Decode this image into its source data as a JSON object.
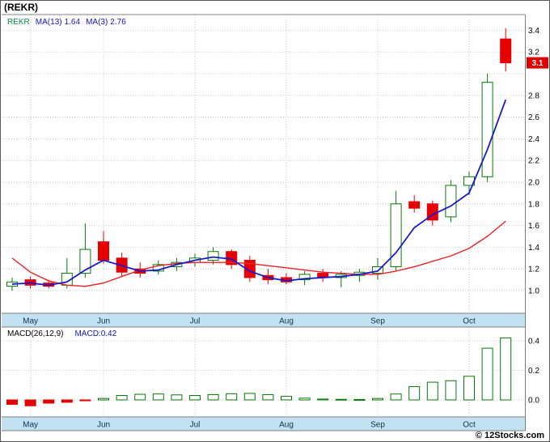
{
  "header": {
    "title": "(REKR)"
  },
  "legend": {
    "symbol": "REKR",
    "ma13_label": "MA(13)",
    "ma13_value": "1.64",
    "ma3_label": "MA(3)",
    "ma3_value": "2.76"
  },
  "macd_panel": {
    "label": "MACD(26,12,9)",
    "value_label": "MACD:0.42"
  },
  "footer": {
    "credit": "© 12Stocks.com"
  },
  "colors": {
    "up": "#067a06",
    "down": "#e60000",
    "ma_fast_line": "#1a1acd",
    "ma_slow_line": "#ee2222",
    "band": "#c3e2f1",
    "band_text": "#0d3050",
    "grid": "#c9c9c9",
    "border": "#808080",
    "axis_text": "#000000",
    "price_tag_bg": "#dd0000",
    "price_tag_text": "#ffffff",
    "legend_symbol": "#0a8a4a",
    "legend_ma": "#1414cc",
    "macd_label": "#000000",
    "macd_value": "#1414cc"
  },
  "chart_data": {
    "type": "candlestick",
    "title": "(REKR)",
    "symbol": "REKR",
    "legend_position": "top-left",
    "grid": true,
    "timeframe_months": [
      "May",
      "Jun",
      "Jul",
      "Aug",
      "Sep",
      "Oct"
    ],
    "month_tick_indices": [
      1,
      5,
      10,
      15,
      20,
      25
    ],
    "price_axis_ticks": [
      1.0,
      1.2,
      1.4,
      1.6,
      1.8,
      2.0,
      2.2,
      2.4,
      2.6,
      2.8,
      3.2,
      3.4
    ],
    "price_ylim": [
      0.8,
      3.5
    ],
    "last_price": 3.1,
    "candle_format": [
      "open",
      "high",
      "low",
      "close"
    ],
    "candles": [
      [
        1.04,
        1.12,
        1.0,
        1.08
      ],
      [
        1.1,
        1.13,
        1.02,
        1.05
      ],
      [
        1.07,
        1.1,
        1.02,
        1.04
      ],
      [
        1.05,
        1.3,
        1.02,
        1.16
      ],
      [
        1.16,
        1.62,
        1.12,
        1.38
      ],
      [
        1.45,
        1.55,
        1.25,
        1.28
      ],
      [
        1.3,
        1.35,
        1.13,
        1.17
      ],
      [
        1.2,
        1.26,
        1.12,
        1.16
      ],
      [
        1.18,
        1.28,
        1.15,
        1.24
      ],
      [
        1.22,
        1.3,
        1.18,
        1.26
      ],
      [
        1.26,
        1.34,
        1.22,
        1.3
      ],
      [
        1.28,
        1.4,
        1.24,
        1.36
      ],
      [
        1.36,
        1.38,
        1.2,
        1.24
      ],
      [
        1.28,
        1.32,
        1.08,
        1.12
      ],
      [
        1.14,
        1.2,
        1.06,
        1.1
      ],
      [
        1.12,
        1.16,
        1.06,
        1.08
      ],
      [
        1.1,
        1.18,
        1.05,
        1.15
      ],
      [
        1.16,
        1.2,
        1.08,
        1.12
      ],
      [
        1.12,
        1.18,
        1.03,
        1.15
      ],
      [
        1.14,
        1.2,
        1.08,
        1.17
      ],
      [
        1.16,
        1.3,
        1.1,
        1.22
      ],
      [
        1.22,
        1.92,
        1.18,
        1.8
      ],
      [
        1.82,
        1.88,
        1.72,
        1.76
      ],
      [
        1.8,
        1.83,
        1.6,
        1.65
      ],
      [
        1.68,
        2.02,
        1.63,
        1.97
      ],
      [
        1.97,
        2.1,
        1.88,
        2.05
      ],
      [
        2.05,
        3.0,
        2.0,
        2.92
      ],
      [
        3.32,
        3.42,
        3.02,
        3.1
      ]
    ],
    "series": [
      {
        "name": "MA(3)",
        "last_value": 2.76,
        "values": [
          1.06,
          1.07,
          1.05,
          1.08,
          1.19,
          1.28,
          1.23,
          1.18,
          1.19,
          1.24,
          1.28,
          1.31,
          1.29,
          1.18,
          1.12,
          1.09,
          1.11,
          1.12,
          1.13,
          1.15,
          1.18,
          1.35,
          1.58,
          1.7,
          1.78,
          1.9,
          2.3,
          2.76
        ]
      },
      {
        "name": "MA(13)",
        "last_value": 1.64,
        "values": [
          1.3,
          1.17,
          1.09,
          1.05,
          1.04,
          1.07,
          1.13,
          1.19,
          1.23,
          1.25,
          1.26,
          1.26,
          1.26,
          1.25,
          1.23,
          1.21,
          1.19,
          1.17,
          1.16,
          1.15,
          1.15,
          1.18,
          1.22,
          1.27,
          1.32,
          1.39,
          1.5,
          1.64
        ]
      }
    ],
    "macd": {
      "params": "26,12,9",
      "last_value": 0.42,
      "axis_ticks": [
        0.0,
        0.2,
        0.4
      ],
      "ylim": [
        -0.08,
        0.49
      ],
      "histogram": [
        -0.03,
        -0.04,
        -0.022,
        -0.016,
        -0.006,
        0.01,
        0.03,
        0.038,
        0.04,
        0.034,
        0.03,
        0.036,
        0.042,
        0.044,
        0.036,
        0.024,
        0.012,
        0.006,
        0.004,
        0.003,
        0.01,
        0.04,
        0.09,
        0.12,
        0.13,
        0.16,
        0.35,
        0.42
      ]
    }
  }
}
